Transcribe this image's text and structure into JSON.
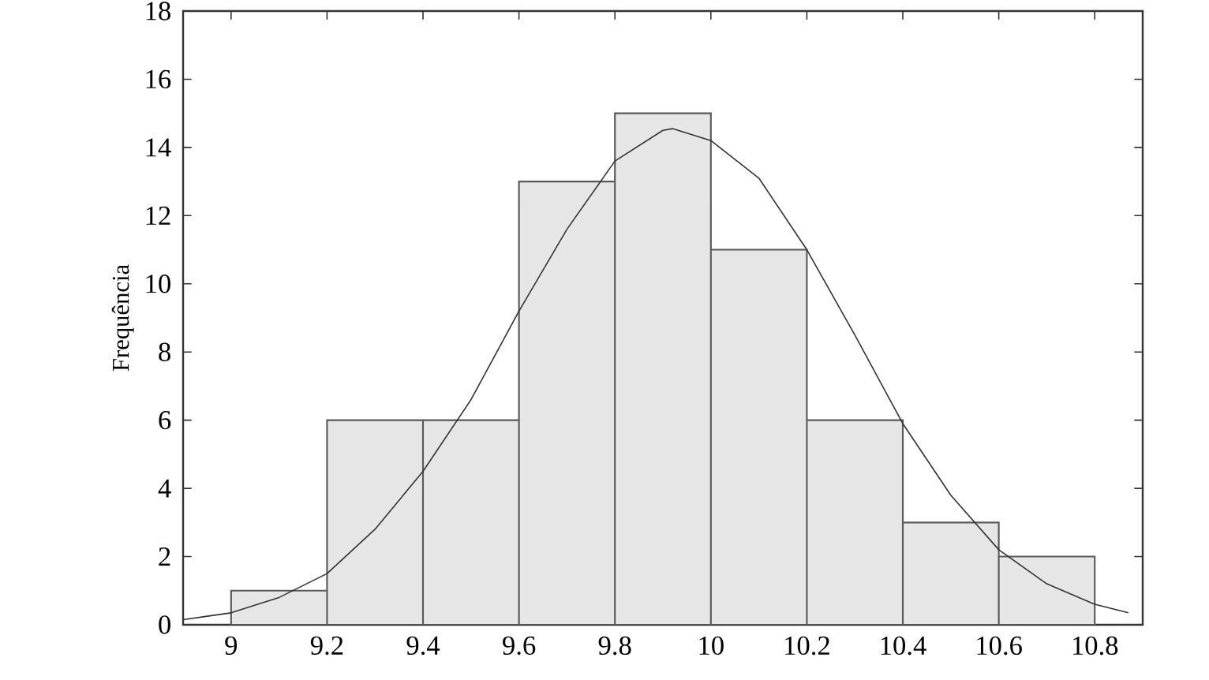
{
  "chart_data": {
    "type": "histogram",
    "ylabel": "Frequência",
    "bins": [
      9.0,
      9.2,
      9.4,
      9.6,
      9.8,
      10.0,
      10.2,
      10.4,
      10.6,
      10.8
    ],
    "values": [
      1,
      6,
      6,
      13,
      15,
      11,
      6,
      3,
      2
    ],
    "color": "#e6e6e6",
    "series": [
      {
        "type": "line",
        "color": "#333333",
        "x": [
          8.9,
          9.0,
          9.1,
          9.2,
          9.3,
          9.4,
          9.5,
          9.6,
          9.7,
          9.8,
          9.9,
          9.92,
          10.0,
          10.1,
          10.2,
          10.3,
          10.4,
          10.5,
          10.6,
          10.7,
          10.8,
          10.87
        ],
        "values": [
          0.15,
          0.35,
          0.8,
          1.5,
          2.8,
          4.5,
          6.6,
          9.2,
          11.6,
          13.6,
          14.5,
          14.55,
          14.2,
          13.1,
          11.0,
          8.5,
          5.9,
          3.8,
          2.2,
          1.2,
          0.6,
          0.35
        ]
      }
    ],
    "xlim": [
      8.9,
      10.9
    ],
    "ylim": [
      0,
      18
    ],
    "xticks": [
      9,
      9.2,
      9.4,
      9.6,
      9.8,
      10,
      10.2,
      10.4,
      10.6,
      10.8
    ],
    "yticks": [
      0,
      2,
      4,
      6,
      8,
      10,
      12,
      14,
      16,
      18
    ]
  }
}
